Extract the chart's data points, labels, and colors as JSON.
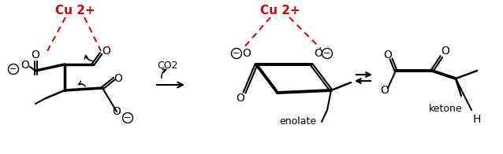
{
  "background": "#ffffff",
  "cu_color": "#cc0000",
  "bond_color": "#000000",
  "fig_width": 6.38,
  "fig_height": 1.96,
  "dpi": 100,
  "cu_text": "Cu 2+",
  "co2_text": "CO2",
  "enolate_text": "enolate",
  "ketone_text": "ketone"
}
